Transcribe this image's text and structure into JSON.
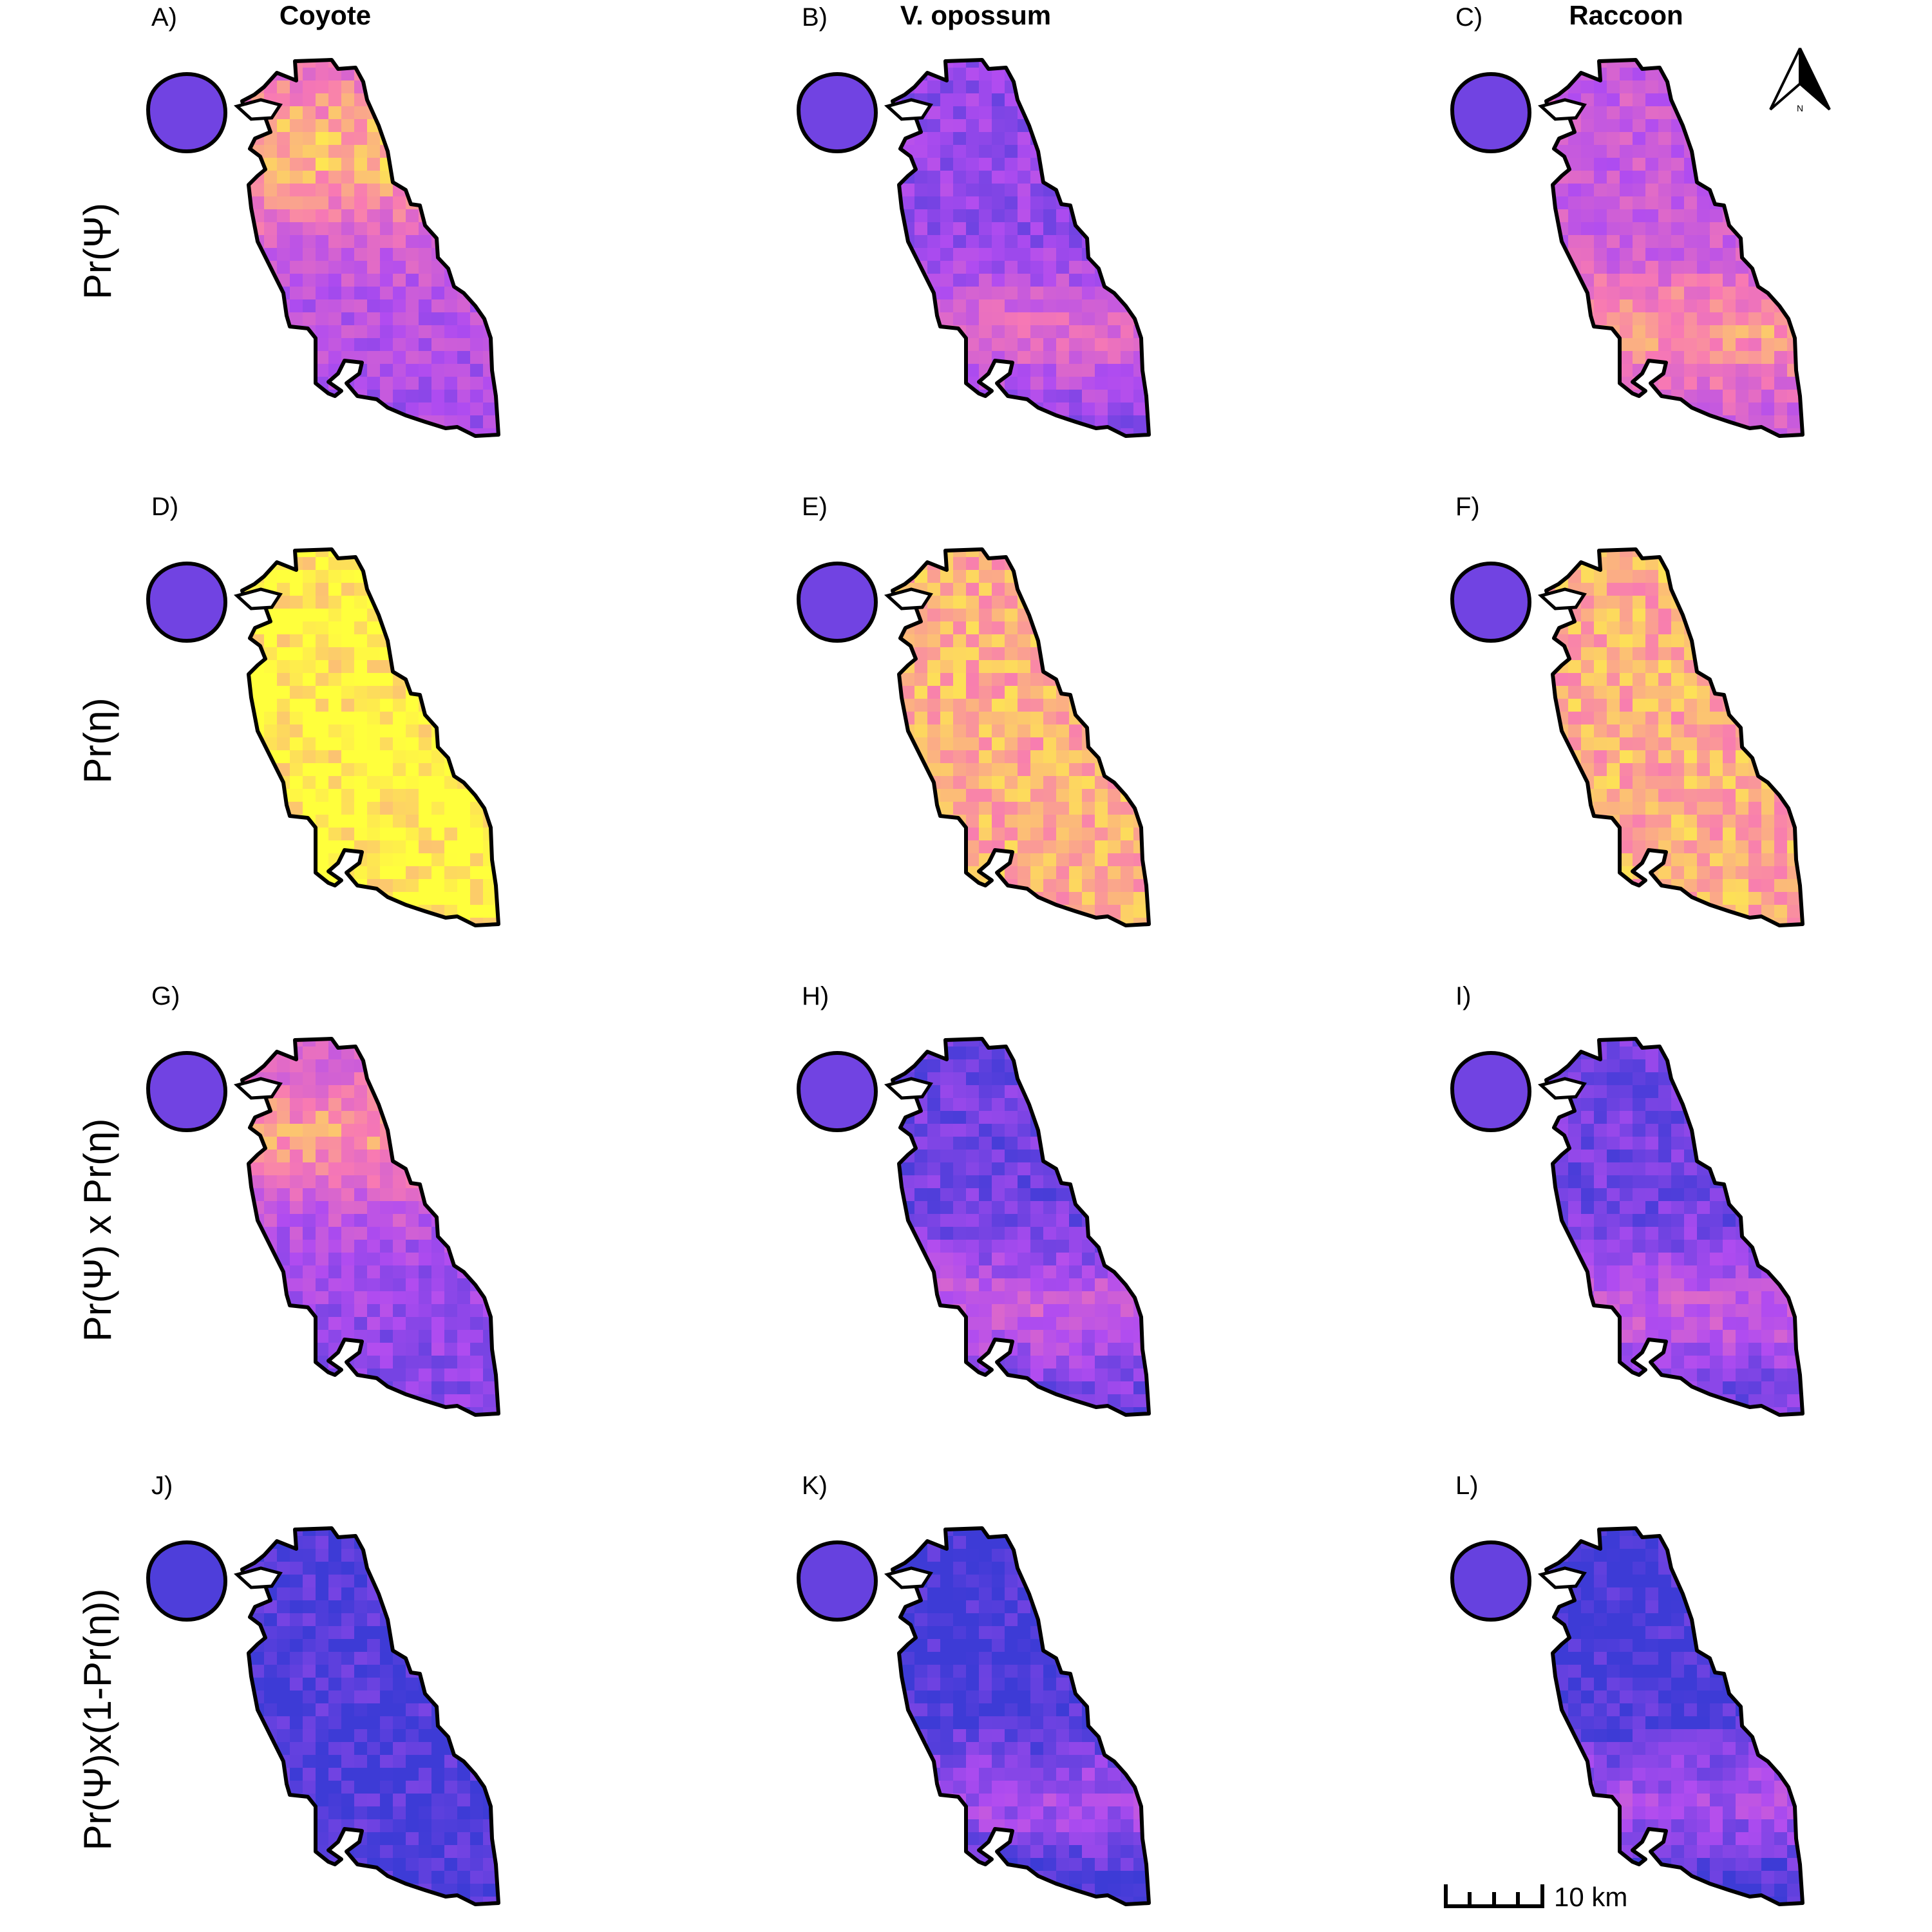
{
  "figure": {
    "columns": [
      {
        "title": "Coyote"
      },
      {
        "title": "V. opossum"
      },
      {
        "title": "Raccoon"
      }
    ],
    "rows": [
      {
        "label": "Pr(Ψ)"
      },
      {
        "label": "Pr(η)"
      },
      {
        "label": "Pr(Ψ) x Pr(η)"
      },
      {
        "label": "Pr(Ψ)x(1-Pr(η))"
      }
    ],
    "panels": [
      {
        "label": "A)",
        "level": 0.55,
        "hotspot": "north"
      },
      {
        "label": "B)",
        "level": 0.35,
        "hotspot": "south"
      },
      {
        "label": "C)",
        "level": 0.55,
        "hotspot": "south"
      },
      {
        "label": "D)",
        "level": 0.97,
        "hotspot": "none"
      },
      {
        "label": "E)",
        "level": 0.8,
        "hotspot": "none"
      },
      {
        "label": "F)",
        "level": 0.8,
        "hotspot": "none"
      },
      {
        "label": "G)",
        "level": 0.45,
        "hotspot": "north"
      },
      {
        "label": "H)",
        "level": 0.25,
        "hotspot": "south"
      },
      {
        "label": "I)",
        "level": 0.25,
        "hotspot": "south"
      },
      {
        "label": "J)",
        "level": 0.05,
        "hotspot": "none"
      },
      {
        "label": "K)",
        "level": 0.12,
        "hotspot": "south"
      },
      {
        "label": "L)",
        "level": 0.12,
        "hotspot": "south"
      }
    ],
    "colors": {
      "low": "#3d3bd6",
      "mid": "#b04cf0",
      "high": "#f879b3",
      "top": "#ffff3c",
      "outline": "#000000"
    },
    "scale_bar": {
      "label": "10 km"
    },
    "north_arrow": {
      "label": "N"
    }
  }
}
